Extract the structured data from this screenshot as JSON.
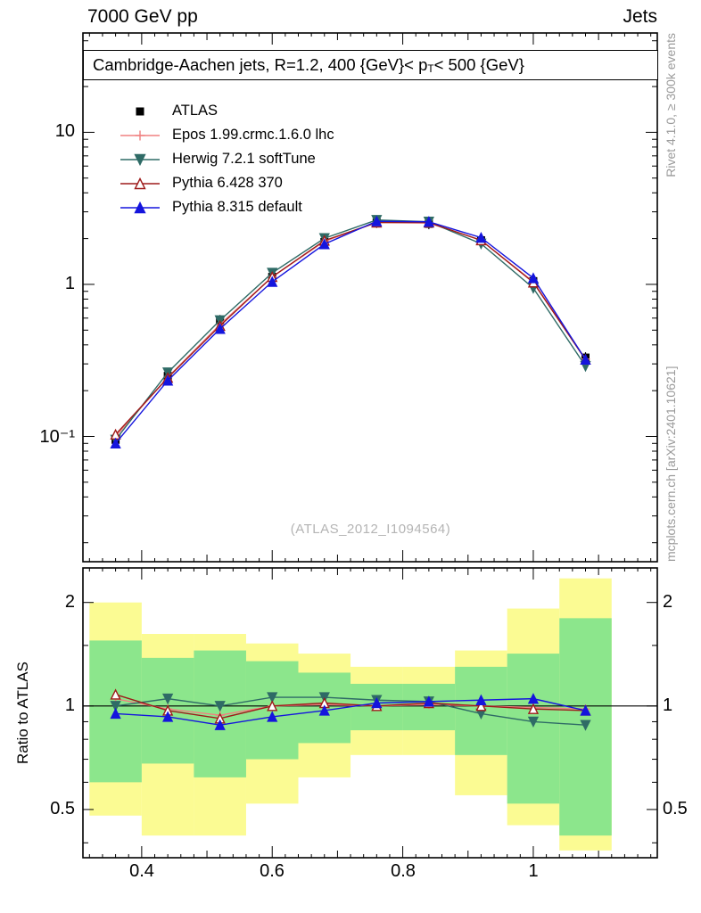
{
  "header": {
    "left": "7000 GeV pp",
    "right": "Jets"
  },
  "plot_title": {
    "part1": "Cambridge-Aachen jets, R=1.2,  400 {GeV}< p",
    "sub": "T",
    "part2": " < 500 {GeV}"
  },
  "watermark": "(ATLAS_2012_I1094564)",
  "side_labels": {
    "rivet": "Rivet 4.1.0, ≥ 300k events",
    "mcplots": "mcplots.cern.ch [arXiv:2401.10621]"
  },
  "axes": {
    "ratio_ylabel": "Ratio to ATLAS",
    "main_yticks": [
      "10",
      "1",
      "10⁻¹"
    ],
    "ratio_yticks": [
      "2",
      "1",
      "0.5"
    ],
    "xticks": [
      "0.4",
      "0.6",
      "0.8",
      "1"
    ]
  },
  "chart_data": {
    "type": "line",
    "title": "Cambridge-Aachen jets, R=1.2, 400 {GeV} < pT < 500 {GeV}",
    "xlim": [
      0.31,
      1.19
    ],
    "x_major_ticks": [
      0.4,
      0.6,
      0.8,
      1.0
    ],
    "x": [
      0.36,
      0.44,
      0.52,
      0.6,
      0.68,
      0.76,
      0.84,
      0.92,
      1.0,
      1.08
    ],
    "main_panel": {
      "yscale": "log",
      "ylim": [
        0.015,
        45
      ],
      "yticks": [
        10,
        1,
        0.1
      ]
    },
    "ratio_panel": {
      "yscale": "log",
      "ylim": [
        0.362,
        2.52
      ],
      "yticks": [
        2,
        1,
        0.5
      ],
      "minor_yticks": [
        0.4,
        0.6,
        0.7,
        0.8,
        0.9,
        1.5
      ]
    },
    "legend_position": "top-left",
    "series": [
      {
        "name": "ATLAS",
        "color": "#000000",
        "marker": "square",
        "filled": true,
        "line": false,
        "values": [
          0.095,
          0.25,
          0.58,
          1.12,
          1.9,
          2.55,
          2.5,
          1.95,
          1.05,
          0.33
        ],
        "ratio": [
          1,
          1,
          1,
          1,
          1,
          1,
          1,
          1,
          1,
          1
        ]
      },
      {
        "name": "Epos 1.99.crmc.1.6.0 lhc",
        "color": "#f08080",
        "marker": "cross",
        "filled": false,
        "line": true,
        "values": [
          0.1,
          0.245,
          0.545,
          1.12,
          1.92,
          2.55,
          2.53,
          1.95,
          1.04,
          0.323
        ],
        "ratio": [
          1.05,
          0.98,
          0.94,
          1.0,
          1.01,
          1.0,
          1.01,
          1.0,
          0.99,
          0.98
        ]
      },
      {
        "name": "Herwig 7.2.1 softTune",
        "color": "#2f6b66",
        "marker": "triangle-down",
        "filled": true,
        "line": true,
        "values": [
          0.095,
          0.263,
          0.58,
          1.19,
          2.01,
          2.65,
          2.58,
          1.85,
          0.945,
          0.29
        ],
        "ratio": [
          1.0,
          1.05,
          1.0,
          1.06,
          1.06,
          1.04,
          1.03,
          0.95,
          0.9,
          0.88
        ]
      },
      {
        "name": "Pythia 6.428 370",
        "color": "#9e1a1a",
        "marker": "triangle-up",
        "filled": false,
        "line": true,
        "values": [
          0.103,
          0.243,
          0.534,
          1.12,
          1.94,
          2.55,
          2.55,
          1.95,
          1.03,
          0.32
        ],
        "ratio": [
          1.08,
          0.97,
          0.92,
          1.0,
          1.02,
          1.0,
          1.02,
          1.0,
          0.98,
          0.97
        ]
      },
      {
        "name": "Pythia 8.315 default",
        "color": "#1515dd",
        "marker": "triangle-up",
        "filled": true,
        "line": true,
        "values": [
          0.09,
          0.233,
          0.51,
          1.04,
          1.84,
          2.6,
          2.58,
          2.03,
          1.1,
          0.32
        ],
        "ratio": [
          0.95,
          0.93,
          0.88,
          0.93,
          0.97,
          1.02,
          1.03,
          1.04,
          1.05,
          0.97
        ]
      }
    ],
    "bands": {
      "bin_edges": [
        0.32,
        0.4,
        0.48,
        0.56,
        0.64,
        0.72,
        0.8,
        0.88,
        0.96,
        1.04,
        1.12
      ],
      "yellow_color": "#fbfb93",
      "green_color": "#8ce68c",
      "yellow": [
        [
          0.48,
          2.0
        ],
        [
          0.42,
          1.62
        ],
        [
          0.42,
          1.62
        ],
        [
          0.52,
          1.52
        ],
        [
          0.62,
          1.42
        ],
        [
          0.72,
          1.3
        ],
        [
          0.72,
          1.3
        ],
        [
          0.55,
          1.45
        ],
        [
          0.45,
          1.92
        ],
        [
          0.38,
          2.35
        ]
      ],
      "green": [
        [
          0.6,
          1.55
        ],
        [
          0.68,
          1.38
        ],
        [
          0.62,
          1.45
        ],
        [
          0.7,
          1.35
        ],
        [
          0.78,
          1.25
        ],
        [
          0.85,
          1.16
        ],
        [
          0.85,
          1.16
        ],
        [
          0.72,
          1.3
        ],
        [
          0.52,
          1.42
        ],
        [
          0.42,
          1.8
        ]
      ]
    }
  }
}
